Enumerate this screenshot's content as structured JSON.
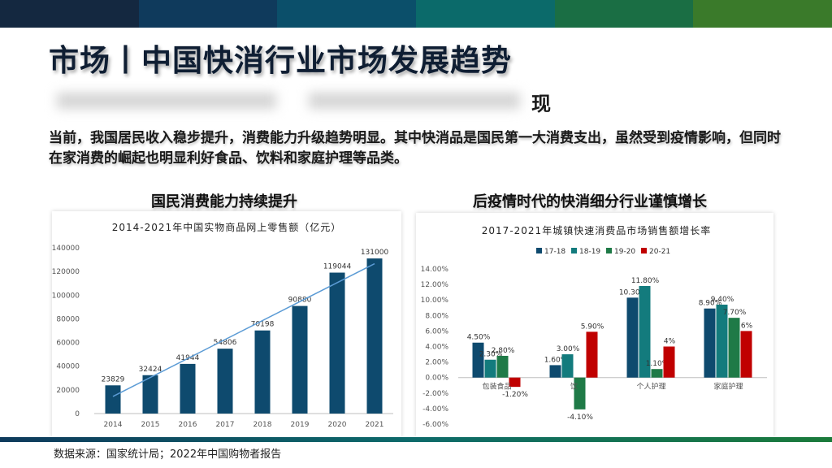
{
  "header": {
    "title": "市场丨中国快消行业市场发展趋势",
    "subtitle_visible_part": "现",
    "band_colors": [
      "#142840",
      "#0f3a5c",
      "#0b4f6a",
      "#0b6a6a",
      "#1a6e44",
      "#3a7a2a"
    ]
  },
  "intro": {
    "text": "当前，我国居民收入稳步提升，消费能力升级趋势明显。其中快消品是国民第一大消费支出，虽然受到疫情影响，但同时在家消费的崛起也明显利好食品、饮料和家庭护理等品类。"
  },
  "left_panel": {
    "heading": "国民消费能力持续提升"
  },
  "right_panel": {
    "heading": "后疫情时代的快消细分行业谨慎增长"
  },
  "footer": {
    "source": "数据来源：国家统计局；2022年中国购物者报告"
  },
  "chart_data": [
    {
      "type": "bar",
      "title": "2014-2021年中国实物商品网上零售额（亿元）",
      "categories": [
        "2014",
        "2015",
        "2016",
        "2017",
        "2018",
        "2019",
        "2020",
        "2021"
      ],
      "values": [
        23829,
        32424,
        41944,
        54806,
        70198,
        90880,
        119044,
        131000
      ],
      "value_labels": [
        "23829",
        "32424",
        "41944",
        "54806",
        "70198",
        "90880",
        "119044",
        "131000"
      ],
      "yticks": [
        "0",
        "20000",
        "40000",
        "60000",
        "80000",
        "100000",
        "120000",
        "140000"
      ],
      "ylim": [
        0,
        140000
      ],
      "trendline": true,
      "bar_color": "#0e4a6e",
      "trend_color": "#5b9bd5"
    },
    {
      "type": "bar",
      "title": "2017-2021年城镇快速消费品市场销售额增长率",
      "categories": [
        "包装食品",
        "饮料",
        "个人护理",
        "家庭护理"
      ],
      "category_labels_visible": [
        "包装食品",
        "饮",
        "个人护理",
        "家庭护理"
      ],
      "series": [
        {
          "name": "17-18",
          "color": "#0e4a6e",
          "values": [
            4.5,
            1.6,
            10.3,
            8.9
          ],
          "labels": [
            "4.50%",
            "1.60%",
            "10.30%",
            "8.90%"
          ]
        },
        {
          "name": "18-19",
          "color": "#137b7d",
          "values": [
            2.3,
            3.0,
            11.8,
            9.4
          ],
          "labels": [
            "2.30%",
            "3.00%",
            "11.80%",
            "9.40%"
          ]
        },
        {
          "name": "19-20",
          "color": "#1f7a47",
          "values": [
            2.8,
            -4.1,
            1.1,
            7.7
          ],
          "labels": [
            "2.80%",
            "-4.10%",
            "1.10%",
            "7.70%"
          ]
        },
        {
          "name": "20-21",
          "color": "#c00000",
          "values": [
            -1.2,
            5.9,
            4.0,
            6.0
          ],
          "labels": [
            "-1.20%",
            "5.90%",
            "4%",
            "6%"
          ]
        }
      ],
      "yticks": [
        "-6.00%",
        "-4.00%",
        "-2.00%",
        "0.00%",
        "2.00%",
        "4.00%",
        "6.00%",
        "8.00%",
        "10.00%",
        "12.00%",
        "14.00%"
      ],
      "ylim": [
        -6,
        14
      ],
      "legend": "top"
    }
  ]
}
